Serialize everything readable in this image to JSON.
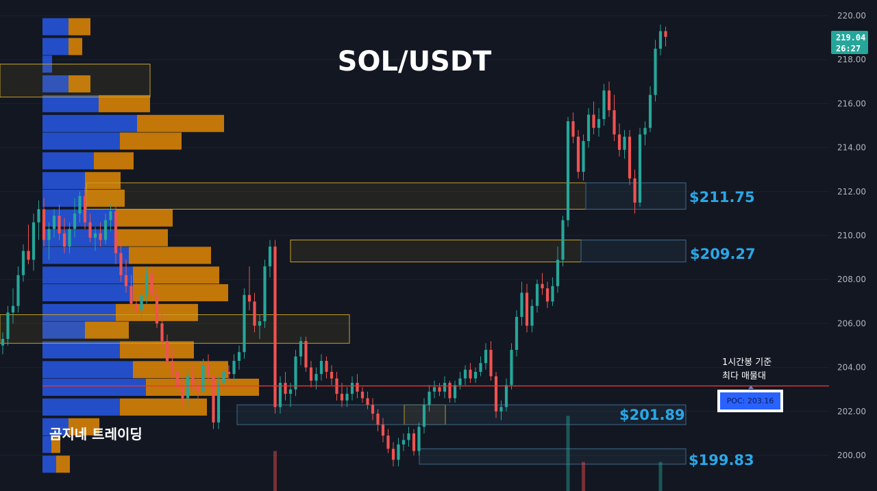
{
  "title": "SOL/USDT",
  "brand": "곰지네 트레이딩",
  "poc_note_line1": "1시간봉 기준",
  "poc_note_line2": "최다 매물대",
  "poc_label": "POC: 203.16",
  "price_tag": {
    "price": "219.04",
    "countdown": "26:27"
  },
  "zone_labels": [
    "$211.75",
    "$209.27",
    "$201.89",
    "$199.83"
  ],
  "colors": {
    "background": "#131722",
    "up": "#26a69a",
    "down": "#ef5350",
    "vp_up": "#2962ff",
    "vp_down": "#ff9800",
    "poc_line": "#e53935",
    "zone_text": "#2aa7e6",
    "zone_border_yellow": "#c9a227",
    "zone_border_blue": "#3f6a8a"
  },
  "chart_data": {
    "type": "candlestick",
    "title": "SOL/USDT",
    "y_axis": {
      "side": "right",
      "range": [
        199.3,
        220.2
      ],
      "ticks": [
        200,
        202,
        204,
        206,
        208,
        210,
        212,
        214,
        216,
        218,
        220
      ]
    },
    "last_price": 219.04,
    "poc": 203.16,
    "zones": [
      {
        "label": "$211.75",
        "low": 211.2,
        "high": 212.4
      },
      {
        "label": "$209.27",
        "low": 208.8,
        "high": 209.8
      },
      {
        "label": "$201.89",
        "low": 201.4,
        "high": 202.3
      },
      {
        "label": "$199.83",
        "low": 199.6,
        "high": 200.3
      }
    ],
    "upper_zones": [
      {
        "low": 216.3,
        "high": 217.8
      },
      {
        "low": 205.1,
        "high": 206.4
      }
    ],
    "volume_profile": [
      {
        "price": 219.5,
        "up": 38,
        "down": 32
      },
      {
        "price": 218.6,
        "up": 38,
        "down": 20
      },
      {
        "price": 217.8,
        "up": 14,
        "down": 0
      },
      {
        "price": 216.9,
        "up": 38,
        "down": 32
      },
      {
        "price": 216.0,
        "up": 82,
        "down": 75
      },
      {
        "price": 215.1,
        "up": 138,
        "down": 127
      },
      {
        "price": 214.3,
        "up": 113,
        "down": 90
      },
      {
        "price": 213.4,
        "up": 75,
        "down": 58
      },
      {
        "price": 212.5,
        "up": 62,
        "down": 52
      },
      {
        "price": 211.7,
        "up": 62,
        "down": 58
      },
      {
        "price": 210.8,
        "up": 107,
        "down": 83
      },
      {
        "price": 209.9,
        "up": 107,
        "down": 76
      },
      {
        "price": 209.1,
        "up": 126,
        "down": 120
      },
      {
        "price": 208.2,
        "up": 132,
        "down": 126
      },
      {
        "price": 207.4,
        "up": 132,
        "down": 139
      },
      {
        "price": 206.5,
        "up": 107,
        "down": 120
      },
      {
        "price": 205.7,
        "up": 62,
        "down": 64
      },
      {
        "price": 204.8,
        "up": 113,
        "down": 108
      },
      {
        "price": 203.9,
        "up": 132,
        "down": 139
      },
      {
        "price": 203.1,
        "up": 151,
        "down": 165
      },
      {
        "price": 202.2,
        "up": 113,
        "down": 127
      },
      {
        "price": 201.3,
        "up": 38,
        "down": 45
      },
      {
        "price": 200.5,
        "up": 13,
        "down": 13
      },
      {
        "price": 199.6,
        "up": 20,
        "down": 20
      }
    ],
    "candles": [
      [
        205.0,
        205.6,
        204.6,
        205.3
      ],
      [
        205.3,
        206.8,
        205.0,
        206.5
      ],
      [
        206.5,
        207.6,
        206.0,
        206.8
      ],
      [
        206.8,
        208.6,
        206.5,
        208.2
      ],
      [
        208.2,
        209.6,
        207.9,
        209.3
      ],
      [
        209.3,
        210.5,
        208.7,
        208.9
      ],
      [
        208.9,
        211.0,
        208.4,
        210.6
      ],
      [
        210.6,
        211.6,
        209.8,
        211.2
      ],
      [
        211.2,
        211.7,
        209.5,
        209.8
      ],
      [
        209.8,
        210.6,
        208.9,
        210.3
      ],
      [
        210.3,
        211.2,
        209.9,
        210.9
      ],
      [
        210.9,
        211.4,
        209.8,
        210.1
      ],
      [
        210.1,
        210.8,
        209.2,
        209.5
      ],
      [
        209.5,
        210.6,
        209.2,
        210.3
      ],
      [
        210.3,
        211.7,
        209.9,
        211.0
      ],
      [
        211.0,
        212.0,
        210.6,
        211.8
      ],
      [
        211.8,
        212.2,
        210.3,
        210.6
      ],
      [
        210.6,
        211.0,
        209.7,
        209.9
      ],
      [
        209.9,
        210.4,
        209.3,
        210.1
      ],
      [
        210.1,
        210.6,
        209.5,
        209.8
      ],
      [
        209.8,
        211.0,
        209.6,
        210.7
      ],
      [
        210.7,
        211.4,
        210.2,
        211.1
      ],
      [
        211.1,
        211.3,
        208.7,
        209.2
      ],
      [
        209.2,
        209.8,
        207.9,
        208.2
      ],
      [
        208.2,
        208.9,
        207.4,
        207.7
      ],
      [
        207.7,
        208.2,
        206.6,
        206.9
      ],
      [
        206.9,
        207.2,
        206.4,
        206.6
      ],
      [
        206.6,
        207.6,
        206.2,
        207.3
      ],
      [
        207.3,
        208.6,
        206.9,
        208.3
      ],
      [
        208.3,
        208.6,
        207.0,
        207.3
      ],
      [
        207.3,
        207.6,
        205.8,
        206.0
      ],
      [
        206.0,
        206.5,
        204.9,
        205.2
      ],
      [
        205.2,
        205.5,
        204.0,
        204.3
      ],
      [
        204.3,
        204.9,
        203.5,
        203.8
      ],
      [
        203.8,
        204.1,
        202.8,
        203.1
      ],
      [
        203.1,
        203.5,
        202.3,
        202.6
      ],
      [
        202.6,
        203.9,
        202.2,
        203.6
      ],
      [
        203.6,
        204.1,
        202.9,
        203.2
      ],
      [
        203.2,
        203.5,
        202.6,
        202.9
      ],
      [
        202.9,
        204.4,
        202.8,
        204.1
      ],
      [
        204.1,
        204.6,
        203.3,
        203.6
      ],
      [
        203.6,
        203.9,
        201.2,
        201.5
      ],
      [
        201.5,
        203.6,
        201.2,
        203.3
      ],
      [
        203.3,
        204.1,
        203.0,
        203.8
      ],
      [
        203.8,
        204.1,
        203.4,
        203.7
      ],
      [
        203.7,
        204.6,
        203.4,
        204.3
      ],
      [
        204.3,
        205.0,
        203.9,
        204.7
      ],
      [
        204.7,
        207.6,
        204.4,
        207.3
      ],
      [
        207.3,
        208.6,
        206.6,
        207.0
      ],
      [
        207.0,
        207.4,
        205.6,
        205.9
      ],
      [
        205.9,
        206.4,
        205.3,
        206.1
      ],
      [
        206.1,
        208.9,
        205.8,
        208.6
      ],
      [
        208.6,
        209.8,
        208.1,
        209.5
      ],
      [
        209.5,
        209.8,
        201.9,
        202.2
      ],
      [
        202.2,
        203.6,
        201.9,
        203.3
      ],
      [
        203.3,
        203.8,
        202.5,
        202.8
      ],
      [
        202.8,
        203.3,
        202.2,
        203.0
      ],
      [
        203.0,
        204.8,
        202.7,
        204.5
      ],
      [
        204.5,
        205.4,
        204.1,
        205.2
      ],
      [
        205.2,
        205.4,
        203.8,
        204.0
      ],
      [
        204.0,
        204.3,
        203.1,
        203.4
      ],
      [
        203.4,
        204.0,
        203.0,
        203.7
      ],
      [
        203.7,
        204.6,
        203.4,
        204.3
      ],
      [
        204.3,
        204.5,
        203.5,
        203.8
      ],
      [
        203.8,
        204.1,
        203.2,
        203.5
      ],
      [
        203.5,
        203.8,
        202.5,
        202.8
      ],
      [
        202.8,
        203.3,
        202.2,
        202.5
      ],
      [
        202.5,
        203.1,
        202.2,
        202.8
      ],
      [
        202.8,
        203.6,
        202.5,
        203.3
      ],
      [
        203.3,
        203.7,
        202.6,
        202.9
      ],
      [
        202.9,
        203.1,
        202.4,
        202.6
      ],
      [
        202.6,
        202.9,
        202.1,
        202.3
      ],
      [
        202.3,
        202.6,
        201.6,
        201.9
      ],
      [
        201.9,
        202.1,
        201.1,
        201.4
      ],
      [
        201.4,
        201.7,
        200.6,
        200.9
      ],
      [
        200.9,
        201.2,
        200.1,
        200.3
      ],
      [
        200.3,
        200.6,
        199.5,
        199.8
      ],
      [
        199.8,
        200.8,
        199.5,
        200.5
      ],
      [
        200.5,
        201.0,
        200.2,
        200.7
      ],
      [
        200.7,
        201.3,
        200.4,
        201.0
      ],
      [
        201.0,
        201.2,
        200.0,
        200.2
      ],
      [
        200.2,
        201.5,
        200.0,
        201.3
      ],
      [
        201.3,
        202.6,
        201.0,
        202.3
      ],
      [
        202.3,
        203.2,
        202.0,
        202.9
      ],
      [
        202.9,
        203.4,
        202.6,
        203.1
      ],
      [
        203.1,
        203.3,
        202.7,
        202.9
      ],
      [
        202.9,
        203.6,
        202.6,
        203.3
      ],
      [
        203.3,
        203.4,
        202.4,
        202.6
      ],
      [
        202.6,
        203.4,
        202.4,
        203.2
      ],
      [
        203.2,
        203.8,
        203.0,
        203.5
      ],
      [
        203.5,
        204.1,
        203.2,
        203.9
      ],
      [
        203.9,
        204.2,
        203.3,
        203.5
      ],
      [
        203.5,
        204.0,
        203.3,
        203.8
      ],
      [
        203.8,
        204.5,
        203.6,
        204.2
      ],
      [
        204.2,
        205.1,
        203.9,
        204.8
      ],
      [
        204.8,
        205.2,
        203.4,
        203.6
      ],
      [
        203.6,
        203.8,
        201.7,
        202.0
      ],
      [
        202.0,
        202.5,
        201.6,
        202.2
      ],
      [
        202.2,
        203.5,
        202.0,
        203.2
      ],
      [
        203.2,
        205.1,
        203.0,
        204.8
      ],
      [
        204.8,
        206.6,
        204.5,
        206.3
      ],
      [
        206.3,
        207.9,
        205.9,
        207.4
      ],
      [
        207.4,
        207.8,
        205.6,
        205.9
      ],
      [
        205.9,
        207.1,
        205.6,
        206.8
      ],
      [
        206.8,
        208.0,
        206.5,
        207.8
      ],
      [
        207.8,
        208.3,
        207.3,
        207.6
      ],
      [
        207.6,
        207.9,
        206.7,
        207.0
      ],
      [
        207.0,
        208.1,
        206.8,
        207.7
      ],
      [
        207.7,
        209.5,
        207.4,
        208.9
      ],
      [
        208.9,
        210.9,
        208.6,
        210.7
      ],
      [
        210.7,
        215.4,
        210.4,
        215.2
      ],
      [
        215.2,
        215.6,
        214.2,
        214.5
      ],
      [
        214.5,
        214.8,
        212.6,
        212.9
      ],
      [
        212.9,
        214.6,
        212.5,
        214.3
      ],
      [
        214.3,
        215.8,
        214.0,
        215.5
      ],
      [
        215.5,
        216.1,
        214.6,
        214.9
      ],
      [
        214.9,
        215.8,
        214.5,
        215.3
      ],
      [
        215.3,
        216.9,
        215.0,
        216.6
      ],
      [
        216.6,
        217.0,
        215.4,
        215.7
      ],
      [
        215.7,
        216.4,
        214.3,
        214.6
      ],
      [
        214.6,
        215.1,
        213.6,
        213.9
      ],
      [
        213.9,
        214.8,
        213.5,
        214.5
      ],
      [
        214.5,
        214.8,
        212.3,
        212.6
      ],
      [
        212.6,
        213.0,
        211.0,
        211.5
      ],
      [
        211.5,
        214.9,
        211.3,
        214.6
      ],
      [
        214.6,
        215.2,
        214.1,
        214.9
      ],
      [
        214.9,
        216.8,
        214.7,
        216.4
      ],
      [
        216.4,
        218.9,
        216.1,
        218.5
      ],
      [
        218.5,
        219.6,
        218.2,
        219.3
      ],
      [
        219.3,
        219.5,
        218.6,
        219.04
      ]
    ],
    "volume": [
      {
        "x_index": 53,
        "value": 200.2,
        "color": "down"
      },
      {
        "x_index": 110,
        "value": 201.8,
        "color": "up"
      },
      {
        "x_index": 113,
        "value": 199.7,
        "color": "down"
      },
      {
        "x_index": 128,
        "value": 199.7,
        "color": "up"
      }
    ]
  }
}
